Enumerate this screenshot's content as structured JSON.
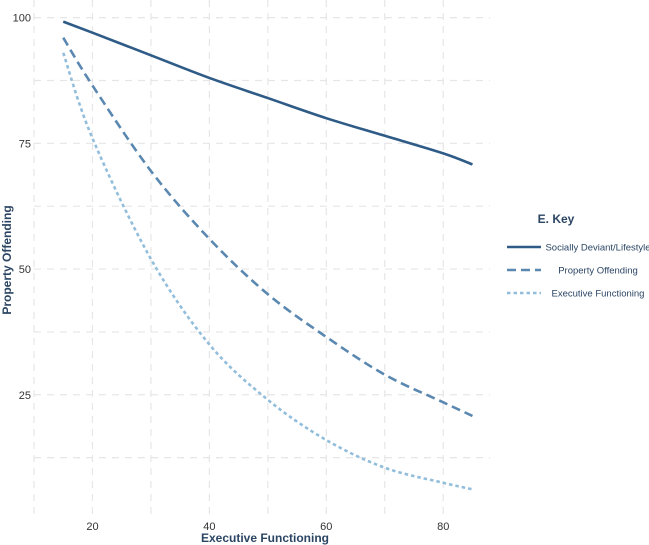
{
  "chart_data": {
    "type": "line",
    "xlabel": "Executive Functioning",
    "ylabel": "Property Offending",
    "xlim": [
      10,
      88
    ],
    "ylim": [
      0.5,
      103.5
    ],
    "xticks": [
      20,
      40,
      60,
      80
    ],
    "yticks": [
      25,
      50,
      75,
      100
    ],
    "grid": true,
    "legend": {
      "title": "E. Key",
      "placement": "right"
    },
    "series": [
      {
        "name": "Socially Deviant/Lifestyle",
        "color": "#2f5b87",
        "dash": "solid",
        "x": [
          15,
          20,
          30,
          40,
          50,
          60,
          70,
          80,
          85
        ],
        "y": [
          99.2,
          97.0,
          92.5,
          88.0,
          84.0,
          80.0,
          76.5,
          73.0,
          70.8
        ]
      },
      {
        "name": "Property Offending",
        "color": "#5b88b0",
        "dash": "dashed",
        "x": [
          15,
          20,
          30,
          40,
          50,
          60,
          70,
          80,
          85
        ],
        "y": [
          96.0,
          86.5,
          69.5,
          56.0,
          45.0,
          36.5,
          29.0,
          23.5,
          20.8
        ]
      },
      {
        "name": "Executive Functioning",
        "color": "#92bedc",
        "dash": "dotted",
        "x": [
          15,
          20,
          30,
          40,
          50,
          60,
          70,
          80,
          85
        ],
        "y": [
          93.0,
          76.0,
          52.0,
          35.0,
          24.0,
          16.0,
          10.5,
          7.5,
          6.2
        ]
      }
    ]
  }
}
